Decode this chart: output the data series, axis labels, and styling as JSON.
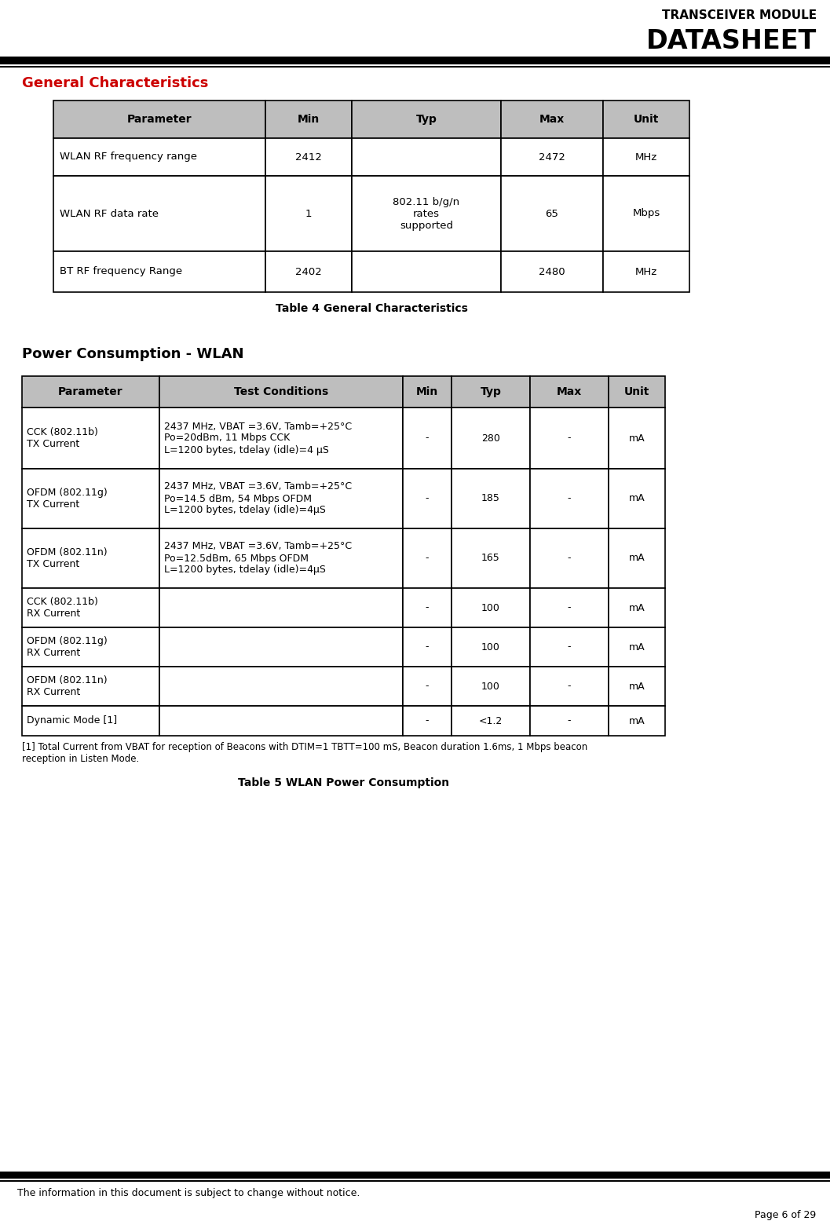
{
  "page_title_line1": "TRANSCEIVER MODULE",
  "page_title_line2": "DATASHEET",
  "footer_left": "The information in this document is subject to change without notice.",
  "footer_right": "Page 6 of 29",
  "section1_title": "General Characteristics",
  "table1_caption": "Table 4 General Characteristics",
  "table1_header": [
    "Parameter",
    "Min",
    "Typ",
    "Max",
    "Unit"
  ],
  "table1_rows": [
    [
      "WLAN RF frequency range",
      "2412",
      "",
      "2472",
      "MHz"
    ],
    [
      "WLAN RF data rate",
      "1",
      "802.11 b/g/n\nrates\nsupported",
      "65",
      "Mbps"
    ],
    [
      "BT RF frequency Range",
      "2402",
      "",
      "2480",
      "MHz"
    ]
  ],
  "section2_title": "Power Consumption - WLAN",
  "table2_caption": "Table 5 WLAN Power Consumption",
  "table2_header": [
    "Parameter",
    "Test Conditions",
    "Min",
    "Typ",
    "Max",
    "Unit"
  ],
  "table2_rows": [
    [
      "CCK (802.11b)\nTX Current",
      "2437 MHz, VBAT =3.6V, Tamb=+25°C\nPo=20dBm, 11 Mbps CCK\nL=1200 bytes, tdelay (idle)=4 μS",
      "-",
      "280",
      "-",
      "mA"
    ],
    [
      "OFDM (802.11g)\nTX Current",
      "2437 MHz, VBAT =3.6V, Tamb=+25°C\nPo=14.5 dBm, 54 Mbps OFDM\nL=1200 bytes, tdelay (idle)=4μS",
      "-",
      "185",
      "-",
      "mA"
    ],
    [
      "OFDM (802.11n)\nTX Current",
      "2437 MHz, VBAT =3.6V, Tamb=+25°C\nPo=12.5dBm, 65 Mbps OFDM\nL=1200 bytes, tdelay (idle)=4μS",
      "-",
      "165",
      "-",
      "mA"
    ],
    [
      "CCK (802.11b)\nRX Current",
      "",
      "-",
      "100",
      "-",
      "mA"
    ],
    [
      "OFDM (802.11g)\nRX Current",
      "",
      "-",
      "100",
      "-",
      "mA"
    ],
    [
      "OFDM (802.11n)\nRX Current",
      "",
      "-",
      "100",
      "-",
      "mA"
    ],
    [
      "Dynamic Mode [1]",
      "",
      "-",
      "<1.2",
      "-",
      "mA"
    ]
  ],
  "table2_footnote": "[1] Total Current from VBAT for reception of Beacons with DTIM=1 TBTT=100 mS, Beacon duration 1.6ms, 1 Mbps beacon\nreception in Listen Mode.",
  "header_bg": "#bebebe",
  "section_title_color": "#cc0000",
  "body_bg": "#ffffff",
  "border_color": "#000000",
  "text_color": "#000000"
}
